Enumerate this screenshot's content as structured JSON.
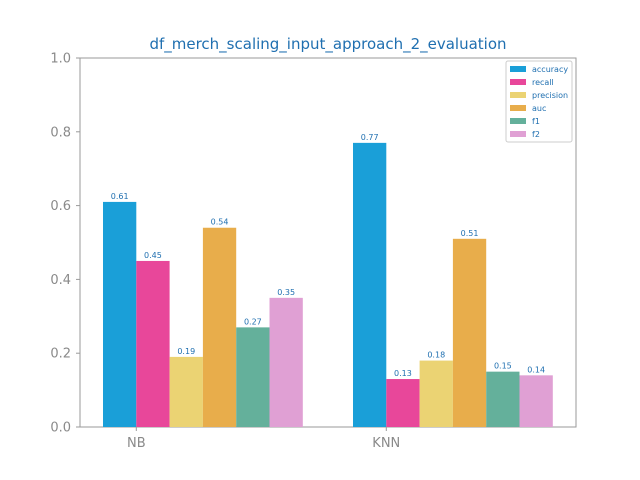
{
  "chart_data": {
    "type": "bar",
    "title": "df_merch_scaling_input_approach_2_evaluation",
    "categories": [
      "NB",
      "KNN"
    ],
    "ylim": [
      0,
      1.0
    ],
    "yticks": [
      "0.0",
      "0.2",
      "0.4",
      "0.6",
      "0.8",
      "1.0"
    ],
    "legend_position": "top-right",
    "series": [
      {
        "name": "accuracy",
        "color": "#1a9fd8",
        "values": [
          0.61,
          0.77
        ],
        "labels": [
          "0.61",
          "0.77"
        ]
      },
      {
        "name": "recall",
        "color": "#e8479a",
        "values": [
          0.45,
          0.13
        ],
        "labels": [
          "0.45",
          "0.13"
        ]
      },
      {
        "name": "precision",
        "color": "#ebd373",
        "values": [
          0.19,
          0.18
        ],
        "labels": [
          "0.19",
          "0.18"
        ]
      },
      {
        "name": "auc",
        "color": "#e8ad4b",
        "values": [
          0.54,
          0.51
        ],
        "labels": [
          "0.54",
          "0.51"
        ]
      },
      {
        "name": "f1",
        "color": "#64b09b",
        "values": [
          0.27,
          0.15
        ],
        "labels": [
          "0.27",
          "0.15"
        ]
      },
      {
        "name": "f2",
        "color": "#e0a0d4",
        "values": [
          0.35,
          0.14
        ],
        "labels": [
          "0.35",
          "0.14"
        ]
      }
    ]
  }
}
